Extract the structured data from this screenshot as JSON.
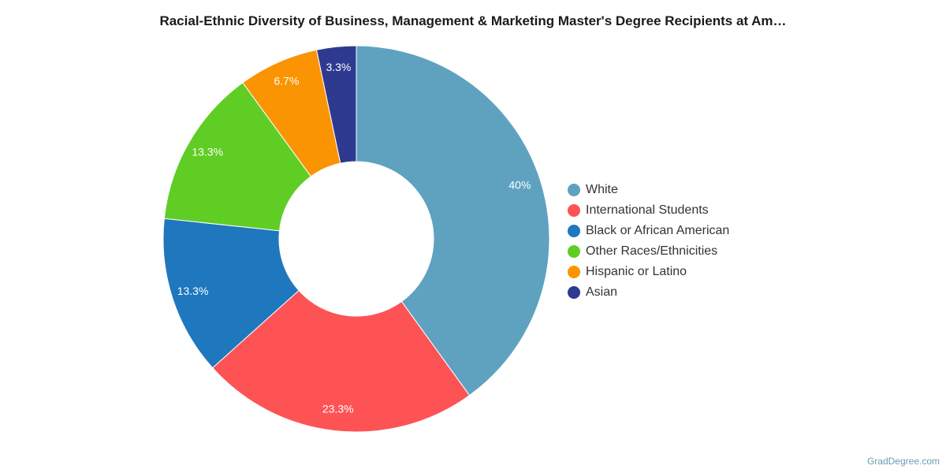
{
  "chart_data": {
    "type": "pie",
    "variant": "donut",
    "title": "Racial-Ethnic Diversity of Business, Management & Marketing Master's Degree Recipients at Am…",
    "slices": [
      {
        "label": "White",
        "value": 40,
        "display": "40%",
        "color": "#5fa2c0"
      },
      {
        "label": "International Students",
        "value": 23.3,
        "display": "23.3%",
        "color": "#fe5355"
      },
      {
        "label": "Black or African American",
        "value": 13.3,
        "display": "13.3%",
        "color": "#1f77be"
      },
      {
        "label": "Other Races/Ethnicities",
        "value": 13.3,
        "display": "13.3%",
        "color": "#60cd25"
      },
      {
        "label": "Hispanic or Latino",
        "value": 6.7,
        "display": "6.7%",
        "color": "#fa9403"
      },
      {
        "label": "Asian",
        "value": 3.3,
        "display": "3.3%",
        "color": "#2e3a8f"
      }
    ],
    "legend_position": "right"
  },
  "footer": {
    "credit": "GradDegree.com"
  }
}
